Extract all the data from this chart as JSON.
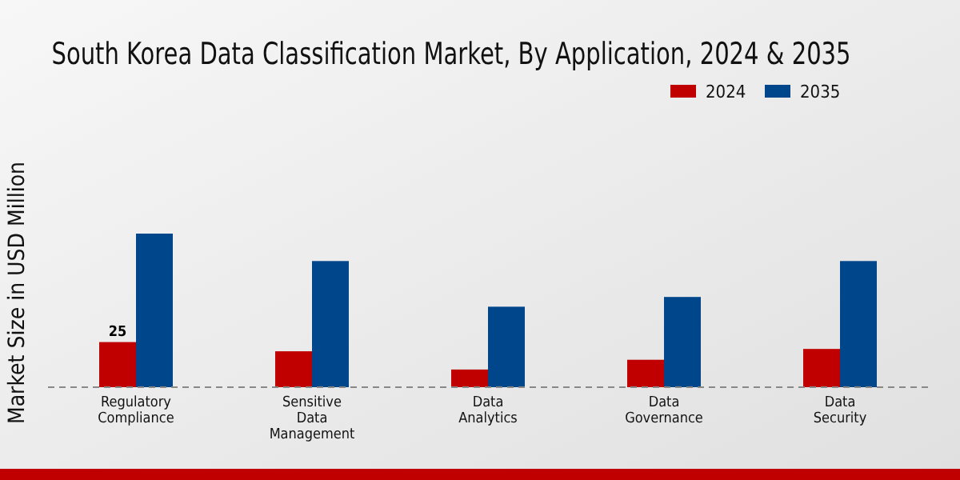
{
  "chart_data": {
    "type": "bar",
    "title": "South Korea Data Classification Market, By Application, 2024 & 2035",
    "ylabel": "Market Size in USD Million",
    "categories": [
      "Regulatory\nCompliance",
      "Sensitive\nData\nManagement",
      "Data\nAnalytics",
      "Data\nGovernance",
      "Data\nSecurity"
    ],
    "series": [
      {
        "name": "2024",
        "color": "#c00000",
        "values": [
          25,
          19.9,
          9.8,
          15.2,
          21.2
        ],
        "value_labels": [
          "25",
          null,
          null,
          null,
          null
        ]
      },
      {
        "name": "2035",
        "color": "#00468b",
        "values": [
          85.1,
          69.9,
          44.6,
          50,
          69.9
        ]
      }
    ],
    "legend": "top right",
    "tick_labels": "x"
  }
}
